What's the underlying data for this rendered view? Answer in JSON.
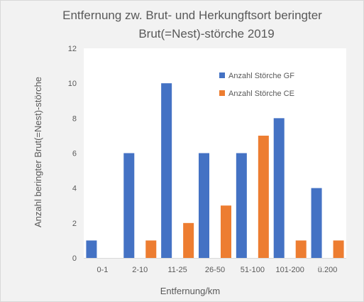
{
  "chart_data": {
    "type": "bar",
    "title_line1": "Entfernung zw. Brut- und Herkungftsort beringter",
    "title_line2": "Brut(=Nest)-störche 2019",
    "xlabel": "Entfernung/km",
    "ylabel": "Anzahl beringter Brut(=Nest)-störche",
    "categories": [
      "0-1",
      "2-10",
      "11-25",
      "26-50",
      "51-100",
      "101-200",
      "ü.200"
    ],
    "series": [
      {
        "name": "Anzahl Störche GF",
        "color": "#4472c4",
        "values": [
          1,
          6,
          10,
          6,
          6,
          8,
          4
        ]
      },
      {
        "name": "Anzahl Störche CE",
        "color": "#ed7d31",
        "values": [
          0,
          1,
          2,
          3,
          7,
          1,
          1
        ]
      }
    ],
    "ylim": [
      0,
      12
    ],
    "yticks": [
      0,
      2,
      4,
      6,
      8,
      10,
      12
    ],
    "grid": false,
    "legend_position": "top-right (inside plot)"
  }
}
